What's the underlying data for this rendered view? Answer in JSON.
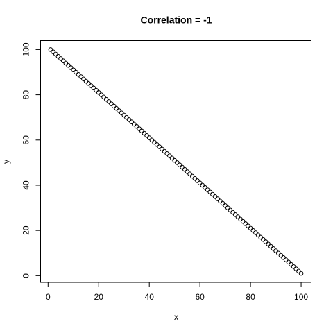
{
  "chart_data": {
    "type": "scatter",
    "title": "Correlation = -1",
    "x_label": "x",
    "y_label": "y",
    "x": [
      1,
      2,
      3,
      4,
      5,
      6,
      7,
      8,
      9,
      10,
      11,
      12,
      13,
      14,
      15,
      16,
      17,
      18,
      19,
      20,
      21,
      22,
      23,
      24,
      25,
      26,
      27,
      28,
      29,
      30,
      31,
      32,
      33,
      34,
      35,
      36,
      37,
      38,
      39,
      40,
      41,
      42,
      43,
      44,
      45,
      46,
      47,
      48,
      49,
      50,
      51,
      52,
      53,
      54,
      55,
      56,
      57,
      58,
      59,
      60,
      61,
      62,
      63,
      64,
      65,
      66,
      67,
      68,
      69,
      70,
      71,
      72,
      73,
      74,
      75,
      76,
      77,
      78,
      79,
      80,
      81,
      82,
      83,
      84,
      85,
      86,
      87,
      88,
      89,
      90,
      91,
      92,
      93,
      94,
      95,
      96,
      97,
      98,
      99,
      100
    ],
    "values": [
      100,
      99,
      98,
      97,
      96,
      95,
      94,
      93,
      92,
      91,
      90,
      89,
      88,
      87,
      86,
      85,
      84,
      83,
      82,
      81,
      80,
      79,
      78,
      77,
      76,
      75,
      74,
      73,
      72,
      71,
      70,
      69,
      68,
      67,
      66,
      65,
      64,
      63,
      62,
      61,
      60,
      59,
      58,
      57,
      56,
      55,
      54,
      53,
      52,
      51,
      50,
      49,
      48,
      47,
      46,
      45,
      44,
      43,
      42,
      41,
      40,
      39,
      38,
      37,
      36,
      35,
      34,
      33,
      32,
      31,
      30,
      29,
      28,
      27,
      26,
      25,
      24,
      23,
      22,
      21,
      20,
      19,
      18,
      17,
      16,
      15,
      14,
      13,
      12,
      11,
      10,
      9,
      8,
      7,
      6,
      5,
      4,
      3,
      2,
      1
    ],
    "color": "#000000",
    "xlim": [
      -2.96,
      103.96
    ],
    "ylim": [
      -2.96,
      103.96
    ],
    "xticks": [
      0,
      20,
      40,
      60,
      80,
      100
    ],
    "yticks": [
      0,
      20,
      40,
      60,
      80,
      100
    ]
  }
}
